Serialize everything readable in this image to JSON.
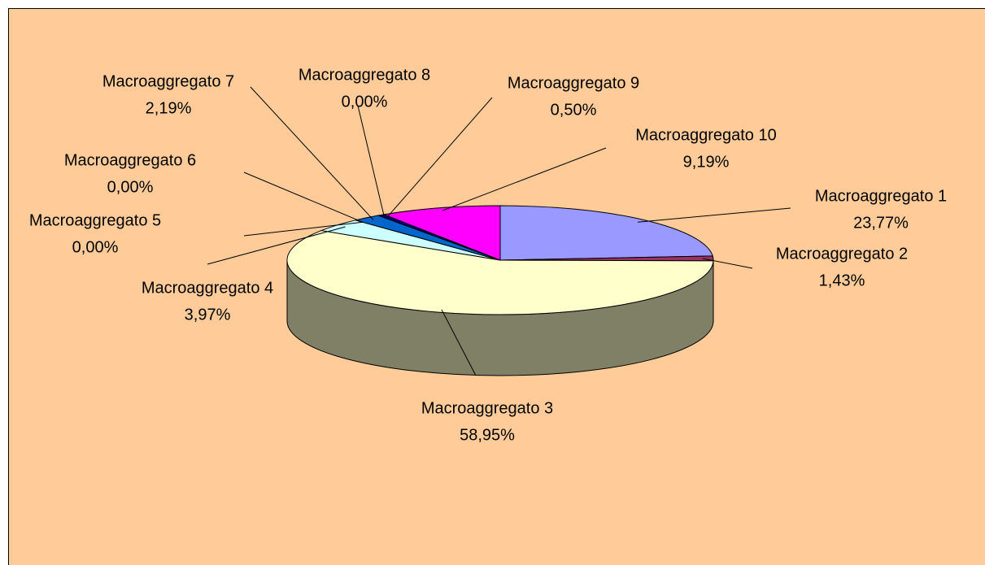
{
  "chart_data": {
    "type": "pie",
    "categories": [
      "Macroaggregato 1",
      "Macroaggregato 2",
      "Macroaggregato 3",
      "Macroaggregato 4",
      "Macroaggregato 5",
      "Macroaggregato 6",
      "Macroaggregato 7",
      "Macroaggregato 8",
      "Macroaggregato 9",
      "Macroaggregato 10"
    ],
    "values": [
      23.77,
      1.43,
      58.95,
      3.97,
      0,
      0,
      2.19,
      0,
      0.5,
      9.19
    ],
    "value_labels": [
      "23,77%",
      "1,43%",
      "58,95%",
      "3,97%",
      "0,00%",
      "0,00%",
      "2,19%",
      "0,00%",
      "0,50%",
      "9,19%"
    ],
    "colors": [
      "#9999ff",
      "#993366",
      "#ffffcc",
      "#ccffff",
      "#660066",
      "#ff8080",
      "#0066cc",
      "#ccccff",
      "#000080",
      "#ff00ff"
    ]
  }
}
